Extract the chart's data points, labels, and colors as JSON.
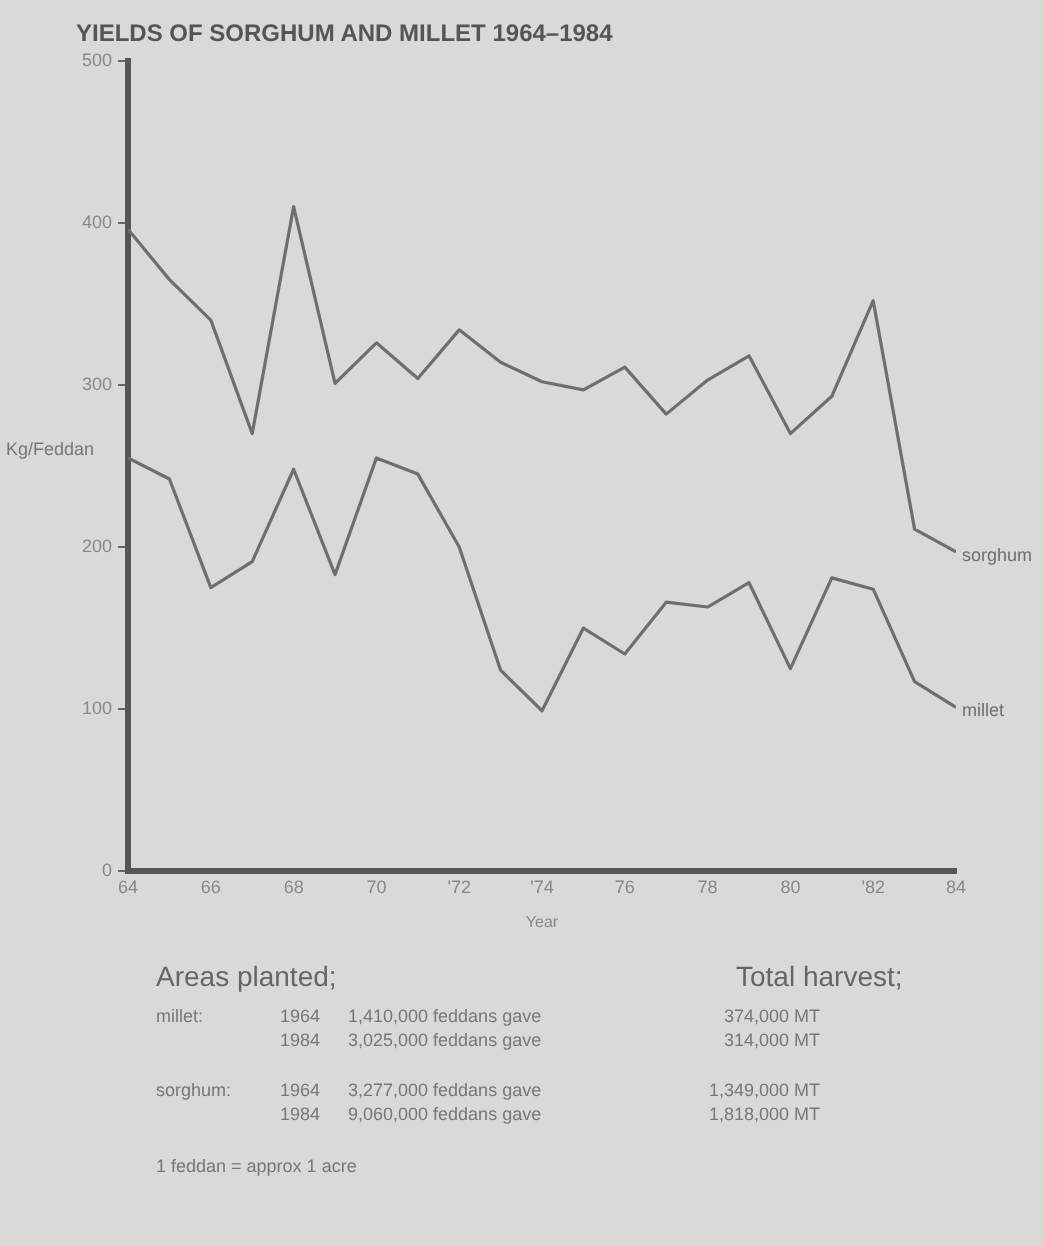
{
  "chart_data": {
    "type": "line",
    "title": "YIELDS OF SORGHUM AND MILLET 1964–1984",
    "xlabel": "Year",
    "ylabel": "Kg/Feddan",
    "x": [
      1964,
      1965,
      1966,
      1967,
      1968,
      1969,
      1970,
      1971,
      1972,
      1973,
      1974,
      1975,
      1976,
      1977,
      1978,
      1979,
      1980,
      1981,
      1982,
      1983,
      1984
    ],
    "series": [
      {
        "name": "sorghum",
        "color": "#6e6e6e",
        "values": [
          396,
          365,
          340,
          270,
          410,
          301,
          326,
          304,
          334,
          314,
          302,
          297,
          311,
          282,
          303,
          318,
          270,
          293,
          352,
          211,
          197
        ]
      },
      {
        "name": "millet",
        "color": "#6e6e6e",
        "values": [
          255,
          242,
          175,
          191,
          248,
          183,
          255,
          245,
          200,
          124,
          99,
          150,
          134,
          166,
          163,
          178,
          125,
          181,
          174,
          117,
          101
        ]
      }
    ],
    "xlim": [
      1964,
      1984
    ],
    "xticks": [
      {
        "value": 1964,
        "label": "64"
      },
      {
        "value": 1966,
        "label": "66"
      },
      {
        "value": 1968,
        "label": "68"
      },
      {
        "value": 1970,
        "label": "70"
      },
      {
        "value": 1972,
        "label": "'72"
      },
      {
        "value": 1974,
        "label": "'74"
      },
      {
        "value": 1976,
        "label": "76"
      },
      {
        "value": 1978,
        "label": "78"
      },
      {
        "value": 1980,
        "label": "80"
      },
      {
        "value": 1982,
        "label": "'82"
      },
      {
        "value": 1984,
        "label": "84"
      }
    ],
    "ylim": [
      0,
      500
    ],
    "yticks": [
      0,
      100,
      200,
      300,
      400,
      500
    ],
    "grid": false,
    "legend": false,
    "marker": "none",
    "line_style": "solid",
    "annotations": [
      "Areas planted;",
      "Total harvest;",
      "millet:",
      "1964",
      "1,410,000 feddans gave",
      "374,000 MT",
      "1984",
      "3,025,000 feddans gave",
      "314,000 MT",
      "sorghum:",
      "1964",
      "3,277,000 feddans gave",
      "1,349,000 MT",
      "1984",
      "9,060,000 feddans gave",
      "1,818,000 MT",
      "1 feddan = approx 1 acre"
    ]
  }
}
